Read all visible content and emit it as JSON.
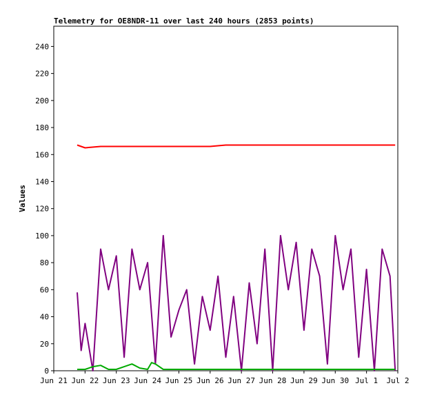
{
  "chart_data": {
    "type": "line",
    "title": "Telemetry for OE8NDR-11 over last 240 hours (2853 points)",
    "xlabel": "",
    "ylabel": "Values",
    "xlim": [
      "2021-06-21",
      "2021-07-02"
    ],
    "ylim": [
      0,
      255
    ],
    "x_tick_labels": [
      "Jun 21",
      "Jun 22",
      "Jun 23",
      "Jun 24",
      "Jun 25",
      "Jun 26",
      "Jun 27",
      "Jun 28",
      "Jun 29",
      "Jun 30",
      "Jul 1",
      "Jul 2"
    ],
    "x_ticks": [
      "2021-06-21",
      "2021-06-22",
      "2021-06-23",
      "2021-06-24",
      "2021-06-25",
      "2021-06-26",
      "2021-06-27",
      "2021-06-28",
      "2021-06-29",
      "2021-06-30",
      "2021-07-01",
      "2021-07-02"
    ],
    "y_ticks": [
      0,
      20,
      40,
      60,
      80,
      100,
      120,
      140,
      160,
      180,
      200,
      220,
      240
    ],
    "grid": false,
    "legend": "none",
    "series": [
      {
        "color": "#ff0000",
        "x": [
          "2021-06-21 18:00",
          "2021-06-21 21:00",
          "2021-06-22 00:00",
          "2021-06-22 12:00",
          "2021-06-24 00:00",
          "2021-06-25 12:00",
          "2021-06-26 00:00",
          "2021-06-26 12:00",
          "2021-06-27 12:00",
          "2021-06-28 12:00",
          "2021-06-29 12:00",
          "2021-06-30 12:00",
          "2021-07-01 12:00",
          "2021-07-01 22:00"
        ],
        "y": [
          167,
          166,
          165,
          166,
          166,
          166,
          166,
          167,
          167,
          167,
          167,
          167,
          167,
          167
        ]
      },
      {
        "color": "#800080",
        "x": [
          "2021-06-21 18:00",
          "2021-06-21 21:00",
          "2021-06-22 00:00",
          "2021-06-22 06:00",
          "2021-06-22 12:00",
          "2021-06-22 18:00",
          "2021-06-23 00:00",
          "2021-06-23 06:00",
          "2021-06-23 12:00",
          "2021-06-23 18:00",
          "2021-06-24 00:00",
          "2021-06-24 06:00",
          "2021-06-24 12:00",
          "2021-06-24 18:00",
          "2021-06-25 00:00",
          "2021-06-25 06:00",
          "2021-06-25 12:00",
          "2021-06-25 18:00",
          "2021-06-26 00:00",
          "2021-06-26 06:00",
          "2021-06-26 12:00",
          "2021-06-26 18:00",
          "2021-06-27 00:00",
          "2021-06-27 06:00",
          "2021-06-27 12:00",
          "2021-06-27 18:00",
          "2021-06-28 00:00",
          "2021-06-28 06:00",
          "2021-06-28 12:00",
          "2021-06-28 18:00",
          "2021-06-29 00:00",
          "2021-06-29 06:00",
          "2021-06-29 12:00",
          "2021-06-29 18:00",
          "2021-06-30 00:00",
          "2021-06-30 06:00",
          "2021-06-30 12:00",
          "2021-06-30 18:00",
          "2021-07-01 00:00",
          "2021-07-01 06:00",
          "2021-07-01 12:00",
          "2021-07-01 18:00",
          "2021-07-01 22:00"
        ],
        "y": [
          58,
          15,
          35,
          0,
          90,
          60,
          85,
          10,
          90,
          60,
          80,
          5,
          100,
          25,
          45,
          60,
          5,
          55,
          30,
          70,
          10,
          55,
          0,
          65,
          20,
          90,
          0,
          100,
          60,
          95,
          30,
          90,
          70,
          5,
          100,
          60,
          90,
          10,
          75,
          0,
          90,
          70,
          0
        ]
      },
      {
        "color": "#00aa00",
        "x": [
          "2021-06-21 18:00",
          "2021-06-22 00:00",
          "2021-06-22 06:00",
          "2021-06-22 12:00",
          "2021-06-22 18:00",
          "2021-06-23 00:00",
          "2021-06-23 06:00",
          "2021-06-23 12:00",
          "2021-06-23 18:00",
          "2021-06-24 00:00",
          "2021-06-24 03:00",
          "2021-06-24 06:00",
          "2021-06-24 12:00",
          "2021-06-25 00:00",
          "2021-06-26 00:00",
          "2021-06-27 00:00",
          "2021-06-28 00:00",
          "2021-06-29 00:00",
          "2021-06-30 00:00",
          "2021-07-01 00:00",
          "2021-07-01 22:00"
        ],
        "y": [
          1,
          1,
          3,
          4,
          1,
          1,
          3,
          5,
          2,
          1,
          6,
          5,
          1,
          1,
          1,
          1,
          1,
          1,
          1,
          1,
          1
        ]
      }
    ]
  }
}
